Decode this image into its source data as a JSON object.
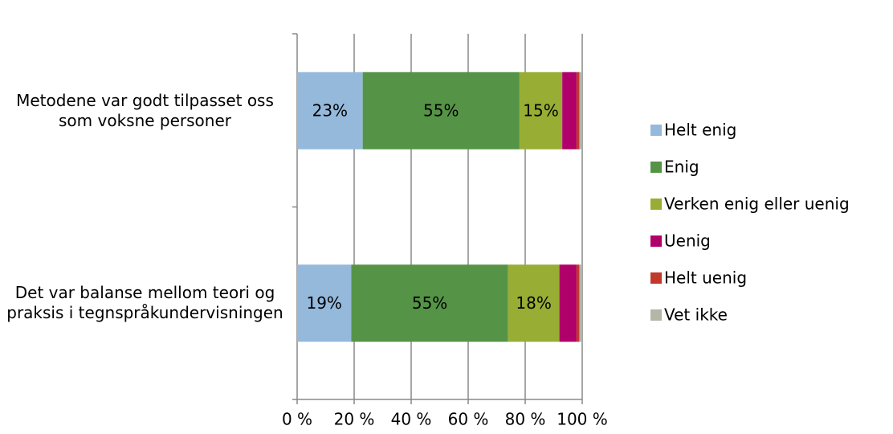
{
  "chart_data": {
    "type": "stacked-barh",
    "categories": [
      "Metodene var godt tilpasset oss som voksne personer",
      "Det var balanse mellom teori og praksis i tegnspråkundervisningen"
    ],
    "series": [
      {
        "name": "Helt enig",
        "color": "#95b9db",
        "values": [
          23,
          19
        ],
        "value_labels": [
          "23%",
          "19%"
        ]
      },
      {
        "name": "Enig",
        "color": "#559446",
        "values": [
          55,
          55
        ],
        "value_labels": [
          "55%",
          "55%"
        ]
      },
      {
        "name": "Verken enig eller uenig",
        "color": "#98ad34",
        "values": [
          15,
          18
        ],
        "value_labels": [
          "15%",
          "18%"
        ]
      },
      {
        "name": "Uenig",
        "color": "#b0006a",
        "values": [
          5,
          6
        ]
      },
      {
        "name": "Helt uenig",
        "color": "#c0392b",
        "values": [
          1,
          1
        ]
      },
      {
        "name": "Vet ikke",
        "color": "#b5b5a8",
        "values": [
          1,
          1
        ]
      }
    ],
    "xlim": [
      0,
      100
    ],
    "xticks": [
      {
        "value": 0,
        "label": "0 %"
      },
      {
        "value": 20,
        "label": "20 %"
      },
      {
        "value": 40,
        "label": "40 %"
      },
      {
        "value": 60,
        "label": "60 %"
      },
      {
        "value": 80,
        "label": "80 %"
      },
      {
        "value": 100,
        "label": "100 %"
      }
    ],
    "grid": true,
    "legend": "right"
  }
}
